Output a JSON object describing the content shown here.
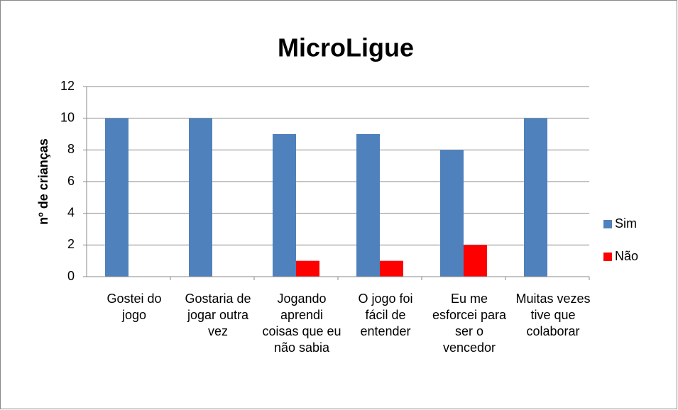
{
  "chart_data": {
    "type": "bar",
    "title": "MicroLigue",
    "y_label": "nº de crianças",
    "categories": [
      "Gostei do jogo",
      "Gostaria de jogar outra vez",
      "Jogando aprendi coisas que eu não sabia",
      "O jogo foi fácil de entender",
      "Eu me esforcei para ser o vencedor",
      "Muitas vezes tive que colaborar"
    ],
    "series": [
      {
        "name": "Sim",
        "color": "#4f81bd",
        "values": [
          10,
          10,
          9,
          9,
          8,
          10
        ]
      },
      {
        "name": "Não",
        "color": "#ff0000",
        "values": [
          0,
          0,
          1,
          1,
          2,
          0
        ]
      }
    ],
    "ylim": [
      0,
      12
    ],
    "yticks": [
      0,
      2,
      4,
      6,
      8,
      10,
      12
    ],
    "grid": true,
    "legend": "right"
  }
}
